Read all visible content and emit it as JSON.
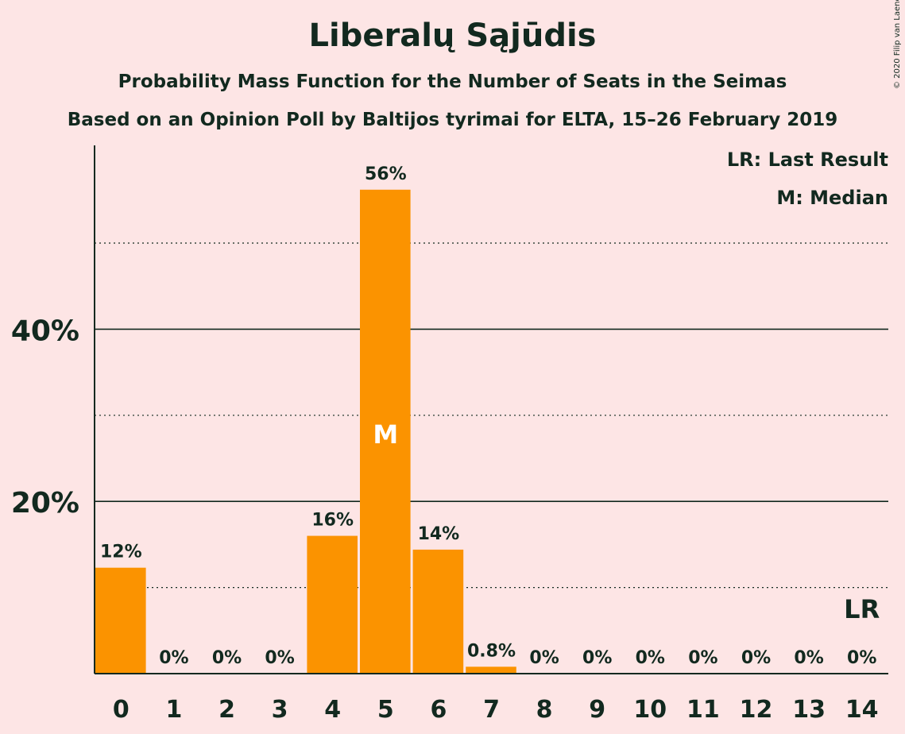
{
  "title": "Liberalų Sąjūdis",
  "subtitle": "Probability Mass Function for the Number of Seats in the Seimas",
  "source_line": "Based on an Opinion Poll by Baltijos tyrimai for ELTA, 15–26 February 2019",
  "copyright": "© 2020 Filip van Laenen",
  "legend": {
    "last_result": "LR: Last Result",
    "median": "M: Median"
  },
  "colors": {
    "bar": "#fb9300",
    "background": "#fde5e5",
    "text": "#12291f"
  },
  "chart_data": {
    "type": "bar",
    "title": "Liberalų Sąjūdis",
    "categories": [
      "0",
      "1",
      "2",
      "3",
      "4",
      "5",
      "6",
      "7",
      "8",
      "9",
      "10",
      "11",
      "12",
      "13",
      "14"
    ],
    "values": [
      12.3,
      0,
      0,
      0,
      16.0,
      56.2,
      14.4,
      0.8,
      0,
      0,
      0,
      0,
      0,
      0,
      0
    ],
    "value_labels": [
      "12%",
      "0%",
      "0%",
      "0%",
      "16%",
      "56%",
      "14%",
      "0.8%",
      "0%",
      "0%",
      "0%",
      "0%",
      "0%",
      "0%",
      "0%"
    ],
    "y_tick_labels": [
      {
        "value": 20,
        "label": "20%"
      },
      {
        "value": 40,
        "label": "40%"
      }
    ],
    "gridlines_solid": [
      20,
      40
    ],
    "gridlines_dotted": [
      10,
      30,
      50
    ],
    "ylim": [
      0,
      61.5
    ],
    "median": {
      "category": "5",
      "marker": "M"
    },
    "last_result": {
      "category": "14",
      "marker": "LR"
    },
    "legend_position": "top-right"
  }
}
